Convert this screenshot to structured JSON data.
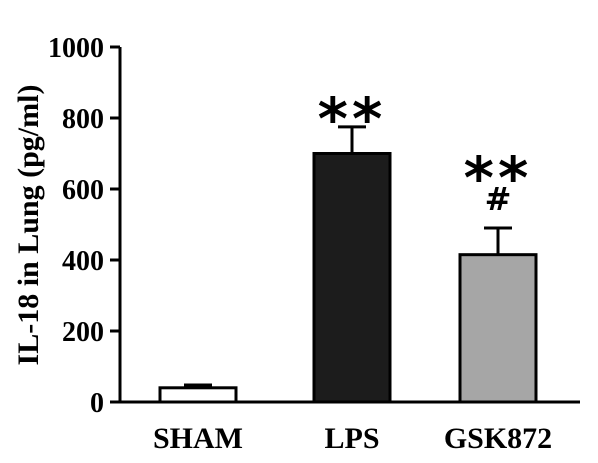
{
  "chart_data": {
    "type": "bar",
    "title": "",
    "ylabel": "IL-18 in Lung (pg/ml)",
    "xlabel": "",
    "ylim": [
      0,
      1000
    ],
    "yticks": [
      0,
      200,
      400,
      600,
      800,
      1000
    ],
    "categories": [
      "SHAM",
      "LPS",
      "GSK872"
    ],
    "values": [
      40,
      700,
      415
    ],
    "errors": [
      8,
      75,
      75
    ],
    "bar_colors": [
      "#ffffff",
      "#1c1c1c",
      "#a6a6a6"
    ],
    "annotations": [
      {
        "category": "LPS",
        "lines": [
          "**"
        ]
      },
      {
        "category": "GSK872",
        "lines": [
          "**",
          "#"
        ]
      }
    ],
    "grid": false,
    "legend": "none"
  }
}
